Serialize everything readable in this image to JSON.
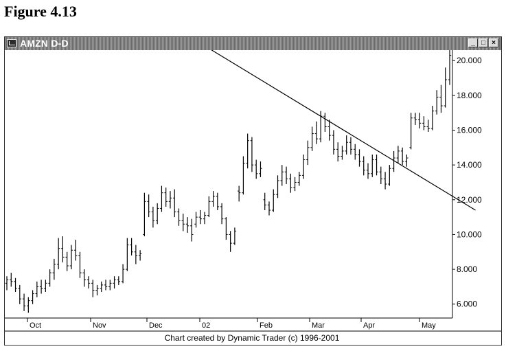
{
  "figure_title": "Figure 4.13",
  "window": {
    "title": "AMZN D-D",
    "buttons": [
      "_",
      "□",
      "×"
    ]
  },
  "footer": "Chart created by Dynamic Trader (c) 1996-2001",
  "chart_data": {
    "type": "bar",
    "subtype": "ohlc",
    "symbol": "AMZN",
    "x_ticks": [
      "Oct",
      "Nov",
      "Dec",
      "02",
      "Feb",
      "Mar",
      "Apr",
      "May"
    ],
    "y_ticks": [
      "6.000",
      "8.000",
      "10.000",
      "12.000",
      "14.000",
      "16.000",
      "18.000",
      "20.000"
    ],
    "ylim": [
      5.2,
      20.6
    ],
    "grid": false,
    "price_bars": [
      [
        7.2,
        7.6,
        6.8,
        7.4
      ],
      [
        7.4,
        7.8,
        7.0,
        7.3
      ],
      [
        7.3,
        7.5,
        6.7,
        6.9
      ],
      [
        6.9,
        7.1,
        6.0,
        6.3
      ],
      [
        6.3,
        6.6,
        5.6,
        5.9
      ],
      [
        5.9,
        6.4,
        5.5,
        6.2
      ],
      [
        6.2,
        6.8,
        6.0,
        6.6
      ],
      [
        6.6,
        7.3,
        6.4,
        7.0
      ],
      [
        7.0,
        7.4,
        6.6,
        6.9
      ],
      [
        6.9,
        7.4,
        6.7,
        7.2
      ],
      [
        7.2,
        8.0,
        7.0,
        7.8
      ],
      [
        7.8,
        8.6,
        7.4,
        8.3
      ],
      [
        8.3,
        9.8,
        8.0,
        9.2
      ],
      [
        9.2,
        9.9,
        8.4,
        8.7
      ],
      [
        8.7,
        9.0,
        7.9,
        8.2
      ],
      [
        8.2,
        9.4,
        8.0,
        9.1
      ],
      [
        9.1,
        9.7,
        8.5,
        8.8
      ],
      [
        8.8,
        9.0,
        7.5,
        7.8
      ],
      [
        7.8,
        8.0,
        7.0,
        7.4
      ],
      [
        7.4,
        7.6,
        6.9,
        7.2
      ],
      [
        7.2,
        7.4,
        6.4,
        6.8
      ],
      [
        6.8,
        7.1,
        6.5,
        6.9
      ],
      [
        6.9,
        7.3,
        6.7,
        7.1
      ],
      [
        7.1,
        7.4,
        6.8,
        7.0
      ],
      [
        7.0,
        7.4,
        6.8,
        7.2
      ],
      [
        7.2,
        7.6,
        6.9,
        7.4
      ],
      [
        7.4,
        7.6,
        7.1,
        7.3
      ],
      [
        7.3,
        8.3,
        7.2,
        8.0
      ],
      [
        8.0,
        9.8,
        7.9,
        9.4
      ],
      [
        9.4,
        9.8,
        8.8,
        9.0
      ],
      [
        9.0,
        9.4,
        8.3,
        8.8
      ],
      [
        8.8,
        9.1,
        8.5,
        8.9
      ],
      [
        10.0,
        12.4,
        9.9,
        11.9
      ],
      [
        11.9,
        12.3,
        11.0,
        11.3
      ],
      [
        11.3,
        11.6,
        10.4,
        10.8
      ],
      [
        10.8,
        11.8,
        10.6,
        11.5
      ],
      [
        11.5,
        12.8,
        11.3,
        12.4
      ],
      [
        12.4,
        12.7,
        11.6,
        11.9
      ],
      [
        11.9,
        12.5,
        11.5,
        12.1
      ],
      [
        12.1,
        12.6,
        11.0,
        11.3
      ],
      [
        11.3,
        11.5,
        10.5,
        10.8
      ],
      [
        10.8,
        11.2,
        10.2,
        10.6
      ],
      [
        10.6,
        11.0,
        10.1,
        10.5
      ],
      [
        10.5,
        10.9,
        9.6,
        10.0
      ],
      [
        10.6,
        11.3,
        10.4,
        11.0
      ],
      [
        11.0,
        11.4,
        10.6,
        10.9
      ],
      [
        10.9,
        11.3,
        10.6,
        11.1
      ],
      [
        11.1,
        12.2,
        11.0,
        11.9
      ],
      [
        11.9,
        12.5,
        11.6,
        12.2
      ],
      [
        12.2,
        12.4,
        11.4,
        11.6
      ],
      [
        11.6,
        11.8,
        10.6,
        10.9
      ],
      [
        10.9,
        11.0,
        9.7,
        10.0
      ],
      [
        10.0,
        10.2,
        9.0,
        9.5
      ],
      [
        9.5,
        10.4,
        9.4,
        10.2
      ],
      [
        12.5,
        12.8,
        11.9,
        12.4
      ],
      [
        12.4,
        14.5,
        12.3,
        14.1
      ],
      [
        14.1,
        15.8,
        13.8,
        15.4
      ],
      [
        15.4,
        15.6,
        13.6,
        14.0
      ],
      [
        14.0,
        14.3,
        13.2,
        13.5
      ],
      [
        13.5,
        14.2,
        13.3,
        13.8
      ],
      [
        12.0,
        12.4,
        11.4,
        11.7
      ],
      [
        11.7,
        11.9,
        11.1,
        11.4
      ],
      [
        11.4,
        12.6,
        11.3,
        12.3
      ],
      [
        12.3,
        13.4,
        12.1,
        13.1
      ],
      [
        13.1,
        14.0,
        12.8,
        13.6
      ],
      [
        13.6,
        13.9,
        12.9,
        13.2
      ],
      [
        13.2,
        13.5,
        12.4,
        12.7
      ],
      [
        12.7,
        13.3,
        12.5,
        13.0
      ],
      [
        13.0,
        13.6,
        12.8,
        13.4
      ],
      [
        13.4,
        14.6,
        13.2,
        14.3
      ],
      [
        14.3,
        15.4,
        14.0,
        15.0
      ],
      [
        15.0,
        16.2,
        14.8,
        15.8
      ],
      [
        15.8,
        16.5,
        15.2,
        15.5
      ],
      [
        15.5,
        17.1,
        15.3,
        16.8
      ],
      [
        16.8,
        17.0,
        15.9,
        16.2
      ],
      [
        16.2,
        16.6,
        15.4,
        15.7
      ],
      [
        15.7,
        16.0,
        14.6,
        14.9
      ],
      [
        14.9,
        15.3,
        14.2,
        14.5
      ],
      [
        14.5,
        15.1,
        14.3,
        14.8
      ],
      [
        14.8,
        15.7,
        14.6,
        15.3
      ],
      [
        15.3,
        15.6,
        14.6,
        14.9
      ],
      [
        14.9,
        15.2,
        14.3,
        14.6
      ],
      [
        14.6,
        14.9,
        13.9,
        14.2
      ],
      [
        14.2,
        14.5,
        13.4,
        13.7
      ],
      [
        13.7,
        14.1,
        13.2,
        13.5
      ],
      [
        13.5,
        14.6,
        13.3,
        14.3
      ],
      [
        14.3,
        14.6,
        13.4,
        13.6
      ],
      [
        13.6,
        13.9,
        12.9,
        13.2
      ],
      [
        13.2,
        13.6,
        12.6,
        12.9
      ],
      [
        12.9,
        14.0,
        12.8,
        13.8
      ],
      [
        13.8,
        14.8,
        13.6,
        14.4
      ],
      [
        14.4,
        15.1,
        14.1,
        14.8
      ],
      [
        14.8,
        15.0,
        14.0,
        14.2
      ],
      [
        14.2,
        14.6,
        13.9,
        14.4
      ],
      [
        15.0,
        17.0,
        14.9,
        16.7
      ],
      [
        16.7,
        17.0,
        16.3,
        16.6
      ],
      [
        16.6,
        17.0,
        16.1,
        16.4
      ],
      [
        16.4,
        16.8,
        16.0,
        16.2
      ],
      [
        16.2,
        16.6,
        15.9,
        16.1
      ],
      [
        16.1,
        17.4,
        16.0,
        17.1
      ],
      [
        17.1,
        18.3,
        16.9,
        17.9
      ],
      [
        17.9,
        18.6,
        17.0,
        17.4
      ],
      [
        17.4,
        19.6,
        17.3,
        18.9
      ],
      [
        18.9,
        20.6,
        18.6,
        20.3
      ]
    ],
    "trendline": {
      "start": {
        "bar": 45,
        "price": 21.0
      },
      "end": {
        "bar": 109,
        "price": 11.4
      }
    }
  }
}
